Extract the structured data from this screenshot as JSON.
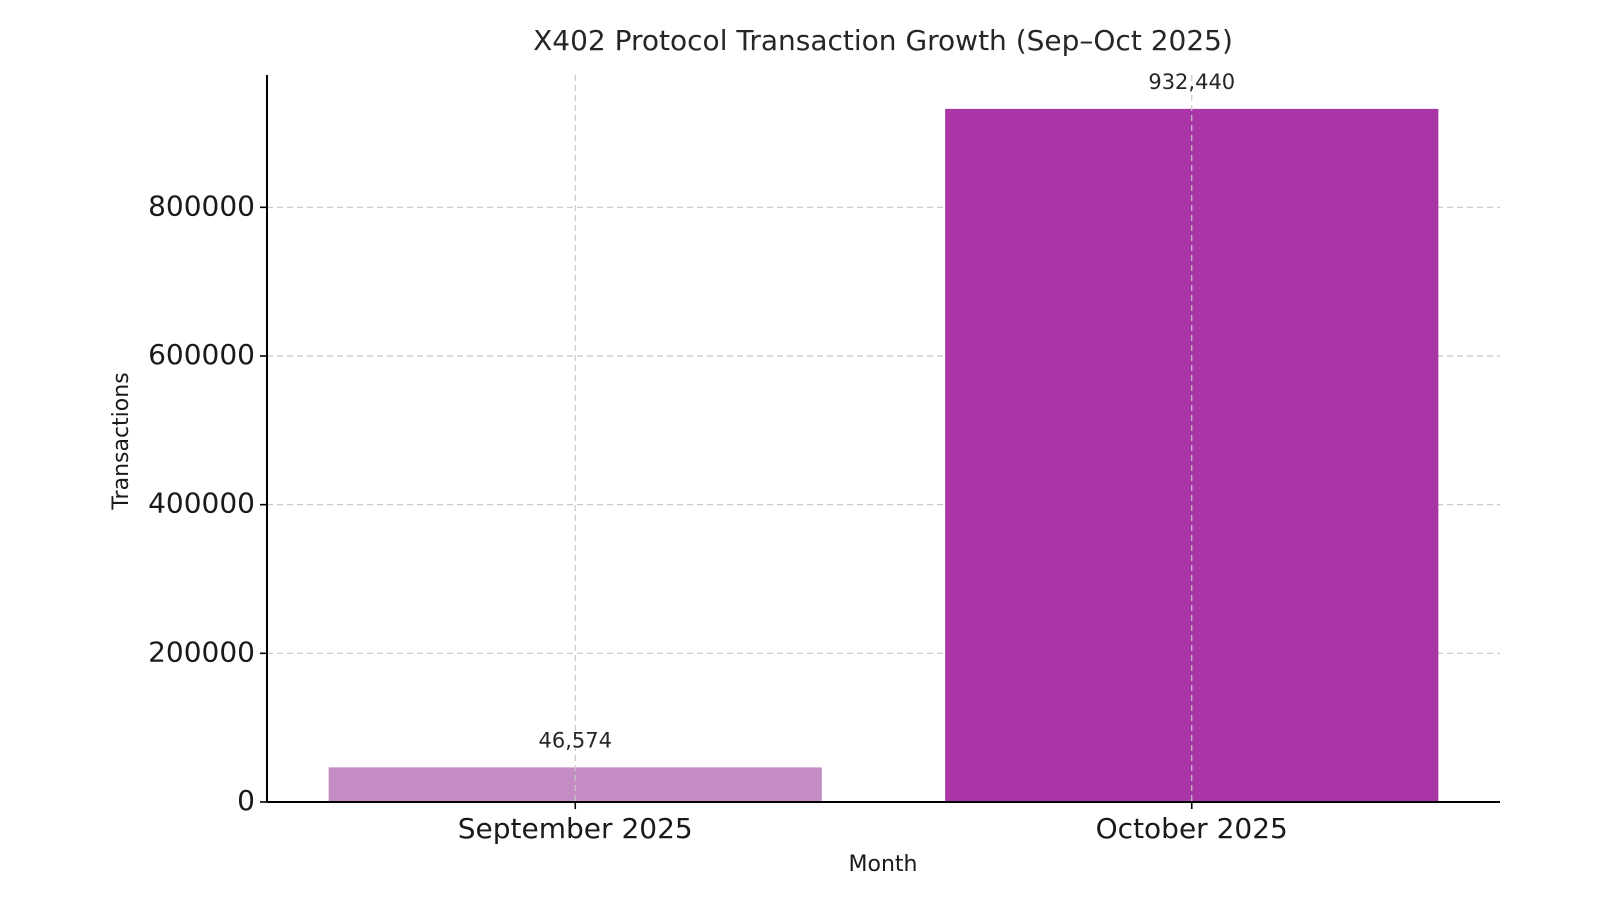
{
  "chart_data": {
    "type": "bar",
    "title": "X402 Protocol Transaction Growth (Sep–Oct 2025)",
    "xlabel": "Month",
    "ylabel": "Transactions",
    "categories": [
      "September 2025",
      "October 2025"
    ],
    "values": [
      46574,
      932440
    ],
    "data_labels": [
      "46,574",
      "932,440"
    ],
    "bar_colors": [
      "#c38dc4",
      "#aa35a6"
    ],
    "ylim": [
      0,
      978000
    ],
    "yticks": [
      0,
      200000,
      400000,
      600000,
      800000
    ],
    "ytick_labels": [
      "0",
      "200000",
      "400000",
      "600000",
      "800000"
    ],
    "grid": true,
    "legend": "none"
  }
}
